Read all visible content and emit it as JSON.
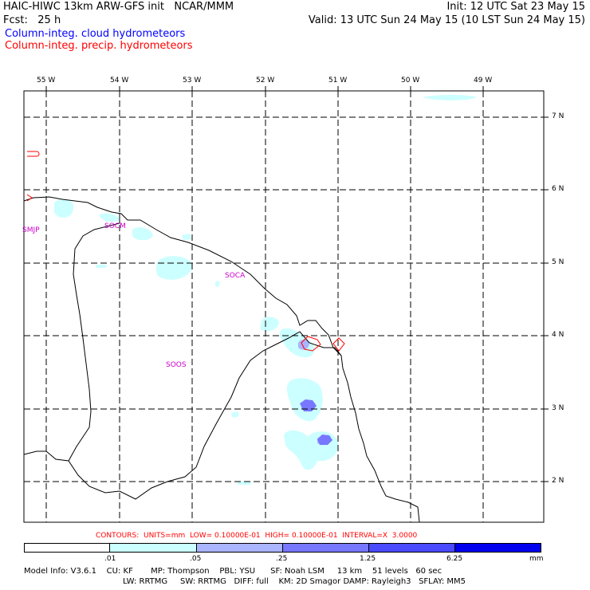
{
  "header": {
    "left_line1": "HAIC-HIWC 13km ARW-GFS init   NCAR/MMM",
    "left_line2": "Fcst:   25 h",
    "right_line1": "Init: 12 UTC Sat 23 May 15",
    "right_line2": "Valid: 13 UTC Sun 24 May 15 (10 LST Sun 24 May 15)",
    "field_cloud": "Column-integ. cloud hydrometeors",
    "field_precip": "Column-integ. precip. hydrometeors"
  },
  "colors": {
    "cloud_text": "#0000ff",
    "precip_text": "#ff0000",
    "station_label": "#cc00cc",
    "contours_text": "#ff0000",
    "shade_1": "#ccffff",
    "shade_2": "#aab4ff",
    "shade_3": "#7777ff",
    "shade_4": "#4a4aff",
    "shade_5": "#0000ee"
  },
  "map": {
    "lon_labels": [
      "55 W",
      "54 W",
      "53 W",
      "52 W",
      "51 W",
      "50 W",
      "49 W"
    ],
    "lat_labels": [
      "7 N",
      "6 N",
      "5 N",
      "4 N",
      "3 N",
      "2 N"
    ],
    "stations": [
      "SMJP",
      "SOCM",
      "SOCA",
      "SOOS"
    ]
  },
  "contours_line": "CONTOURS:  UNITS=mm  LOW= 0.10000E-01  HIGH= 0.10000E-01  INTERVAL=X  3.0000",
  "colorbar": {
    "ticks": [
      ".01",
      ".05",
      ".25",
      "1.25",
      "6.25"
    ],
    "unit": "mm"
  },
  "footer": {
    "line1": "Model Info: V3.6.1    CU: KF       MP: Thompson    PBL: YSU      SF: Noah LSM     13 km    51 levels   60 sec",
    "line2": "LW: RRTMG     SW: RRTMG   DIFF: full    KM: 2D Smagor DAMP: Rayleigh3   SFLAY: MM5"
  }
}
